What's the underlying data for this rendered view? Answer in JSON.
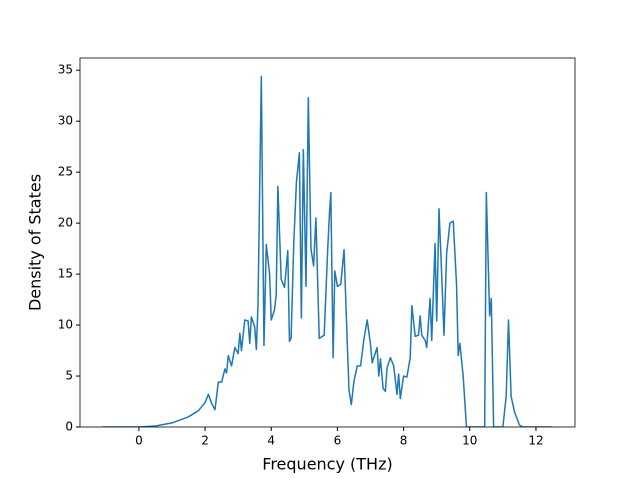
{
  "chart_data": {
    "type": "line",
    "xlabel": "Frequency (THz)",
    "ylabel": "Density of States",
    "color": "#1f77b4",
    "x": [
      -1.1,
      0,
      0.5,
      1.0,
      1.5,
      1.8,
      2.0,
      2.1,
      2.2,
      2.3,
      2.4,
      2.5,
      2.6,
      2.65,
      2.7,
      2.8,
      2.9,
      3.0,
      3.05,
      3.1,
      3.2,
      3.3,
      3.35,
      3.4,
      3.5,
      3.55,
      3.6,
      3.7,
      3.78,
      3.85,
      3.95,
      4.0,
      4.1,
      4.15,
      4.2,
      4.3,
      4.4,
      4.5,
      4.55,
      4.6,
      4.68,
      4.76,
      4.85,
      4.91,
      4.97,
      5.05,
      5.12,
      5.2,
      5.28,
      5.35,
      5.45,
      5.6,
      5.7,
      5.76,
      5.8,
      5.87,
      5.92,
      6.0,
      6.1,
      6.2,
      6.3,
      6.35,
      6.42,
      6.5,
      6.6,
      6.7,
      6.8,
      6.9,
      7.0,
      7.05,
      7.2,
      7.25,
      7.3,
      7.38,
      7.45,
      7.5,
      7.6,
      7.7,
      7.8,
      7.85,
      7.9,
      8.0,
      8.1,
      8.2,
      8.25,
      8.35,
      8.45,
      8.5,
      8.55,
      8.65,
      8.7,
      8.8,
      8.85,
      8.95,
      9.0,
      9.07,
      9.15,
      9.22,
      9.3,
      9.4,
      9.5,
      9.6,
      9.65,
      9.7,
      9.8,
      9.9,
      10.0,
      10.45,
      10.5,
      10.6,
      10.65,
      10.72,
      11.0,
      11.1,
      11.17,
      11.25,
      11.35,
      11.5,
      11.6,
      12.5
    ],
    "values": [
      0,
      0,
      0.1,
      0.4,
      1.0,
      1.6,
      2.4,
      3.2,
      2.3,
      1.7,
      4.4,
      4.4,
      5.7,
      5.3,
      7.0,
      6.0,
      7.8,
      7.2,
      9.2,
      7.5,
      10.5,
      10.4,
      8.2,
      10.8,
      9.8,
      7.6,
      12,
      34.4,
      8.0,
      17.9,
      15,
      10.5,
      11.5,
      13,
      23.6,
      14.5,
      13.7,
      17.3,
      8.4,
      8.7,
      18,
      24,
      26.9,
      10.7,
      27.2,
      13.8,
      32.3,
      17.5,
      15.8,
      20.5,
      8.7,
      9.0,
      17,
      21,
      23,
      6.8,
      15.3,
      13.8,
      14,
      17.4,
      8.0,
      3.6,
      2.2,
      4.5,
      6.0,
      6.0,
      8.6,
      10.5,
      8.1,
      6.3,
      7.8,
      5.0,
      6.7,
      3.8,
      3.5,
      5.8,
      6.8,
      6.0,
      3.2,
      5.2,
      2.8,
      5.0,
      4.9,
      6.8,
      11.9,
      8.9,
      9.0,
      10.9,
      9.0,
      8.5,
      7.8,
      12.6,
      8.5,
      18.0,
      10.4,
      21.4,
      15,
      9.0,
      17,
      20,
      20.2,
      14,
      7.0,
      8.2,
      5.0,
      0,
      0,
      0,
      23,
      10.9,
      12.6,
      0,
      0,
      3,
      10.5,
      3.0,
      1.5,
      0.2,
      0,
      0
    ],
    "xlim": [
      -1.78,
      13.18
    ],
    "ylim": [
      0,
      36.2
    ],
    "xticks": [
      0,
      2,
      4,
      6,
      8,
      10,
      12
    ],
    "yticks": [
      0,
      5,
      10,
      15,
      20,
      25,
      30,
      35
    ]
  }
}
